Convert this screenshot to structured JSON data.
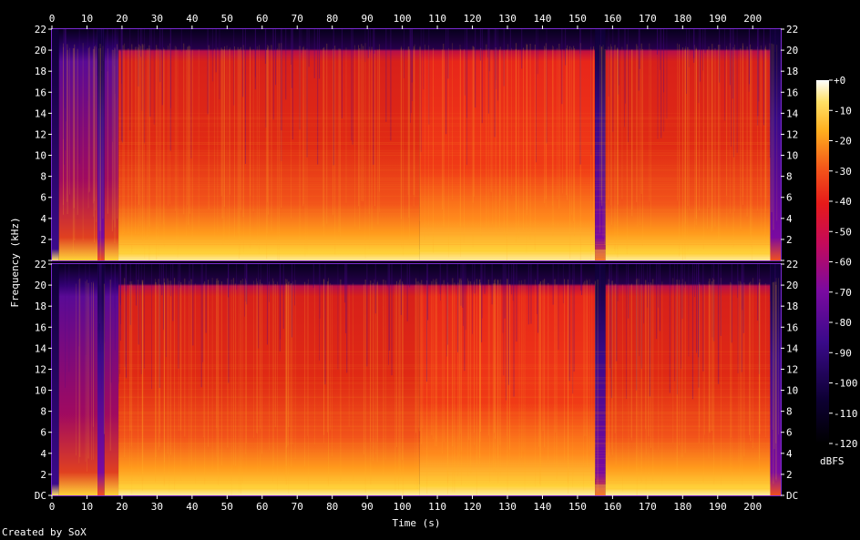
{
  "chart_data": {
    "type": "heatmap",
    "subtype": "spectrogram",
    "channels": 2,
    "xlabel": "Time (s)",
    "ylabel": "Frequency (kHz)",
    "xlim": [
      0,
      208
    ],
    "ylim_khz": [
      0,
      22
    ],
    "x_ticks": [
      0,
      10,
      20,
      30,
      40,
      50,
      60,
      70,
      80,
      90,
      100,
      110,
      120,
      130,
      140,
      150,
      160,
      170,
      180,
      190,
      200
    ],
    "y_ticks": [
      "DC",
      "2",
      "4",
      "6",
      "8",
      "10",
      "12",
      "14",
      "16",
      "18",
      "20",
      "22"
    ],
    "y_tick_values": [
      0,
      2,
      4,
      6,
      8,
      10,
      12,
      14,
      16,
      18,
      20,
      22
    ],
    "colorbar": {
      "label": "dBFS",
      "ticks": [
        "+0",
        "-10",
        "-20",
        "-30",
        "-40",
        "-50",
        "-60",
        "-70",
        "-80",
        "-90",
        "-100",
        "-110",
        "-120"
      ],
      "tick_values": [
        0,
        -10,
        -20,
        -30,
        -40,
        -50,
        -60,
        -70,
        -80,
        -90,
        -100,
        -110,
        -120
      ],
      "range": [
        -120,
        0
      ]
    },
    "lowpass_cutoff_khz": 20,
    "segments": [
      {
        "start": 0,
        "end": 2,
        "level": "silence"
      },
      {
        "start": 2,
        "end": 13,
        "level": "quiet-intro"
      },
      {
        "start": 13,
        "end": 15,
        "level": "dip"
      },
      {
        "start": 15,
        "end": 19,
        "level": "quiet"
      },
      {
        "start": 19,
        "end": 105,
        "level": "loud"
      },
      {
        "start": 105,
        "end": 155,
        "level": "very-loud"
      },
      {
        "start": 155,
        "end": 158,
        "level": "dip"
      },
      {
        "start": 158,
        "end": 205,
        "level": "loud"
      },
      {
        "start": 205,
        "end": 208,
        "level": "fade"
      }
    ]
  },
  "footer": {
    "credit": "Created by SoX"
  }
}
